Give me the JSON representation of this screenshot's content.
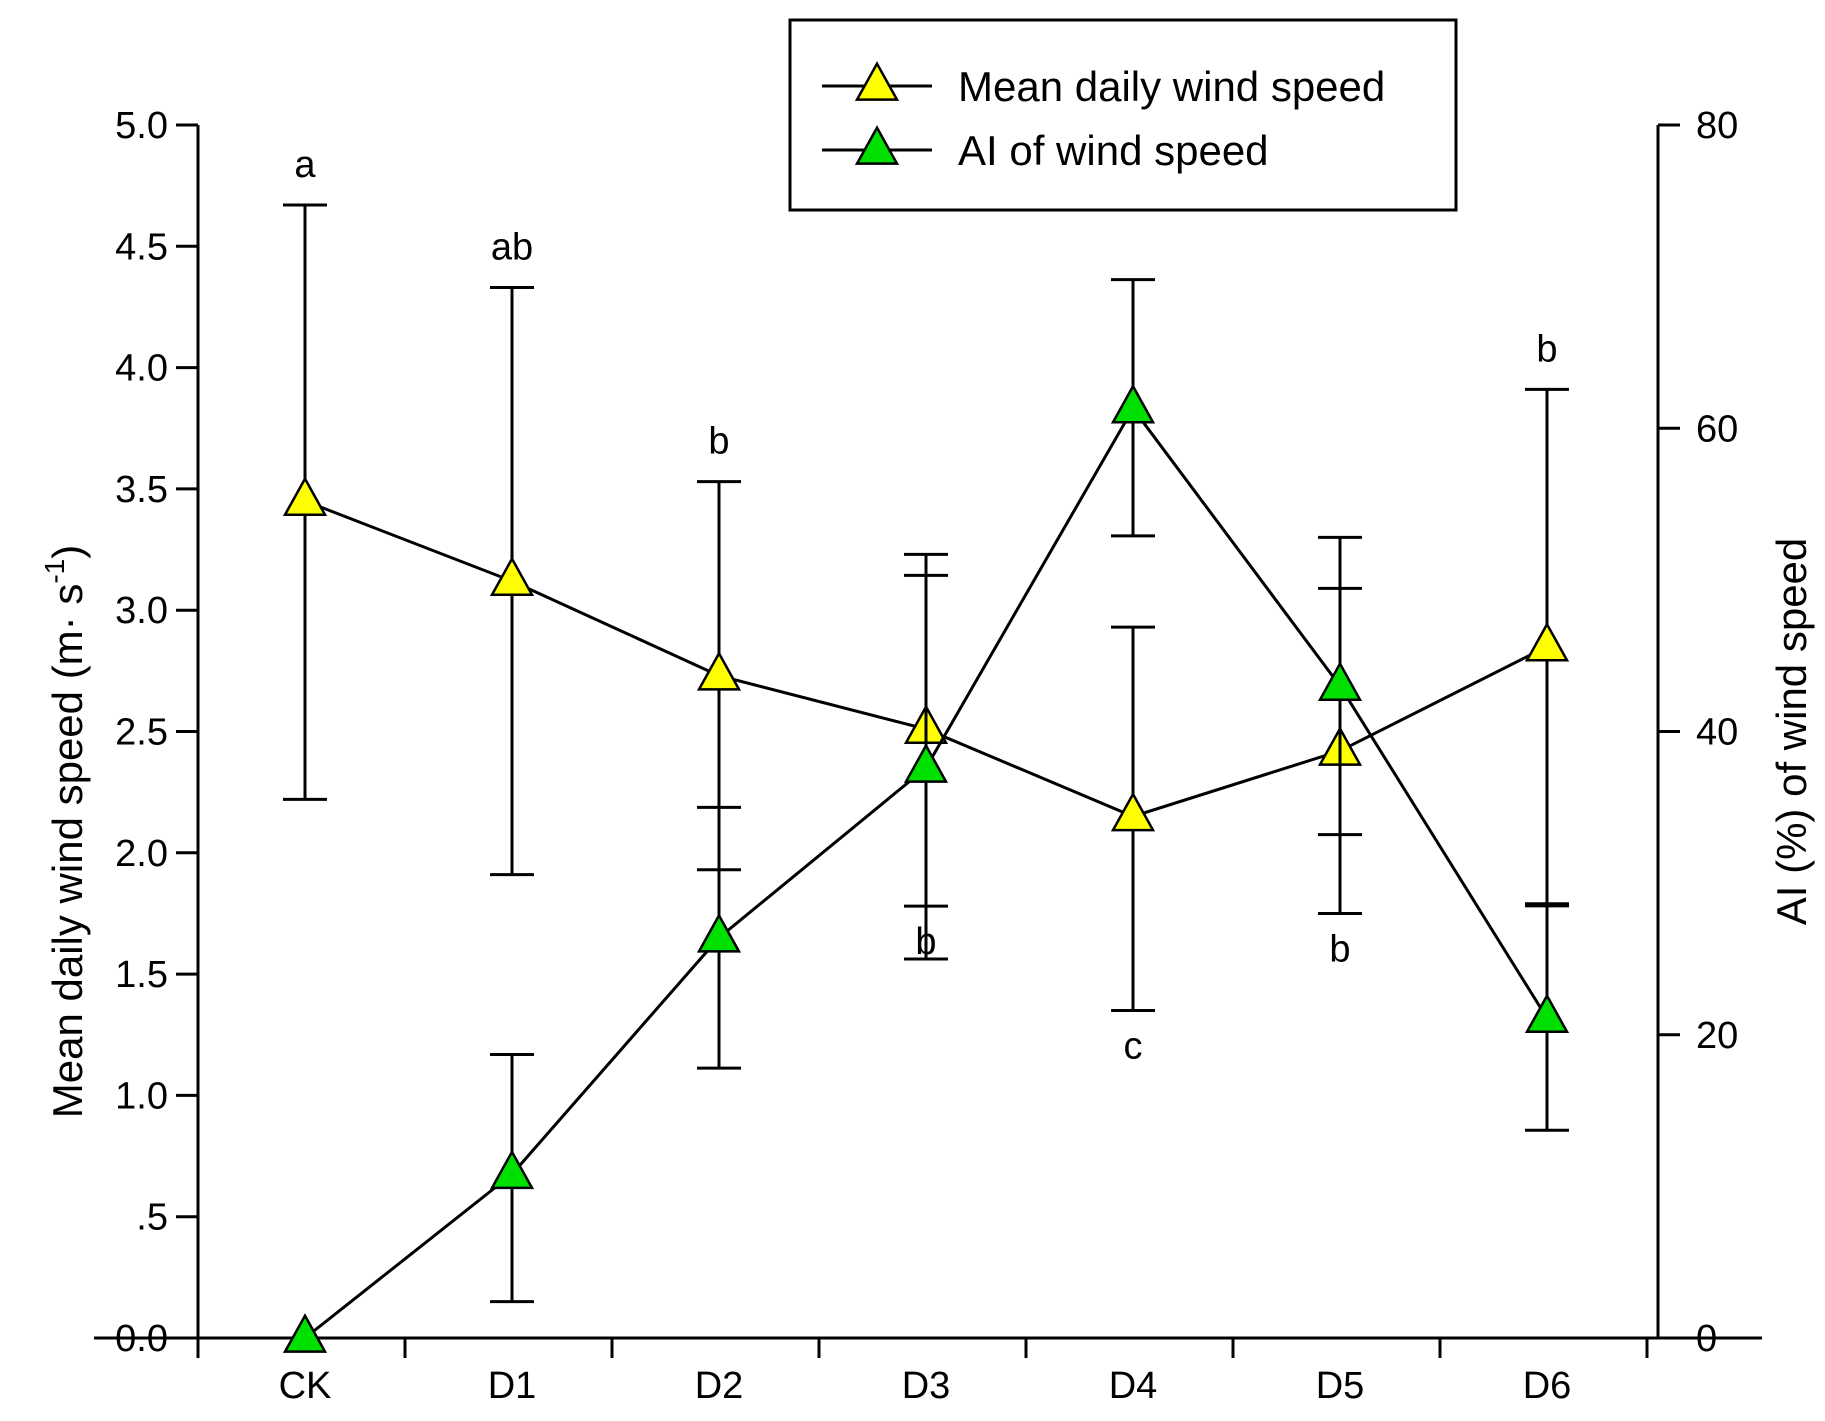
{
  "chart_data": {
    "type": "line",
    "categories": [
      "CK",
      "D1",
      "D2",
      "D3",
      "D4",
      "D5",
      "D6"
    ],
    "ylabel_left": "Mean daily wind speed (m· s",
    "ylabel_left_sup": "-1",
    "ylabel_left_close": ")",
    "ylabel_right": "AI (%) of wind speed",
    "ylim_left": [
      0,
      5
    ],
    "ylim_right": [
      0,
      80
    ],
    "yticks_left": [
      "0.0",
      ".5",
      "1.0",
      "1.5",
      "2.0",
      "2.5",
      "3.0",
      "3.5",
      "4.0",
      "4.5",
      "5.0"
    ],
    "yticks_right": [
      "0",
      "20",
      "40",
      "60",
      "80"
    ],
    "grid": false,
    "legend_position": "top-right",
    "series": [
      {
        "name": "Mean daily wind speed",
        "axis": "left",
        "color": "#ffff00",
        "values": [
          3.45,
          3.12,
          2.73,
          2.51,
          2.15,
          2.42,
          2.85
        ],
        "err_low": [
          2.22,
          1.91,
          1.93,
          1.78,
          1.35,
          1.75,
          1.79
        ],
        "err_high": [
          4.67,
          4.33,
          3.53,
          3.23,
          2.93,
          3.09,
          3.91
        ],
        "letters": [
          "a",
          "ab",
          "b",
          "b",
          "c",
          "b",
          "b"
        ]
      },
      {
        "name": "AI of wind speed",
        "axis": "right",
        "color": "#00e000",
        "values": [
          0,
          10.8,
          26.4,
          37.6,
          61.3,
          43.0,
          21.1
        ],
        "err_low": [
          0,
          2.4,
          17.8,
          25.0,
          52.9,
          33.2,
          13.7
        ],
        "err_high": [
          0,
          18.7,
          35.0,
          50.3,
          69.8,
          52.8,
          28.5
        ]
      }
    ]
  }
}
